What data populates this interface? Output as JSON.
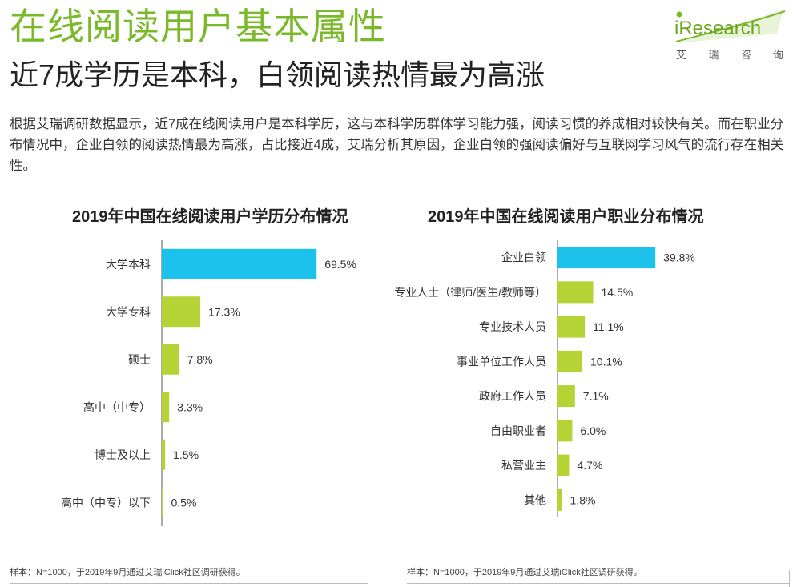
{
  "header": {
    "title": "在线阅读用户基本属性",
    "subtitle": "近7成学历是本科，白领阅读热情最为高涨",
    "intro": "根据艾瑞调研数据显示，近7成在线阅读用户是本科学历，这与本科学历群体学习能力强，阅读习惯的养成相对较快有关。而在职业分布情况中，企业白领的阅读热情最为高涨，占比接近4成，艾瑞分析其原因，企业白领的强阅读偏好与互联网学习风气的流行存在相关性。"
  },
  "logo": {
    "brand": "iResearch",
    "brand_cn": [
      "艾",
      "瑞",
      "咨",
      "询"
    ],
    "color": "#7ab929"
  },
  "colors": {
    "highlight": "#1cc2ec",
    "bar": "#b5d334",
    "axis": "#555555"
  },
  "chart_data": [
    {
      "type": "bar",
      "orientation": "horizontal",
      "title": "2019年中国在线阅读用户学历分布情况",
      "categories": [
        "大学本科",
        "大学专科",
        "硕士",
        "高中（中专）",
        "博士及以上",
        "高中（中专）以下"
      ],
      "values": [
        69.5,
        17.3,
        7.8,
        3.3,
        1.5,
        0.5
      ],
      "labels": [
        "69.5%",
        "17.3%",
        "7.8%",
        "3.3%",
        "1.5%",
        "0.5%"
      ],
      "unit": "%",
      "xlim": [
        0,
        100
      ],
      "highlight_index": 0,
      "note": "样本：N=1000，于2019年9月通过艾瑞iClick社区调研获得。"
    },
    {
      "type": "bar",
      "orientation": "horizontal",
      "title": "2019年中国在线阅读用户职业分布情况",
      "categories": [
        "企业白领",
        "专业人士（律师/医生/教师等）",
        "专业技术人员",
        "事业单位工作人员",
        "政府工作人员",
        "自由职业者",
        "私营业主",
        "其他"
      ],
      "values": [
        39.8,
        14.5,
        11.1,
        10.1,
        7.1,
        6.0,
        4.7,
        1.8
      ],
      "labels": [
        "39.8%",
        "14.5%",
        "11.1%",
        "10.1%",
        "7.1%",
        "6.0%",
        "4.7%",
        "1.8%"
      ],
      "unit": "%",
      "xlim": [
        0,
        100
      ],
      "highlight_index": 0,
      "note": "样本：N=1000，于2019年9月通过艾瑞iClick社区调研获得。"
    }
  ]
}
